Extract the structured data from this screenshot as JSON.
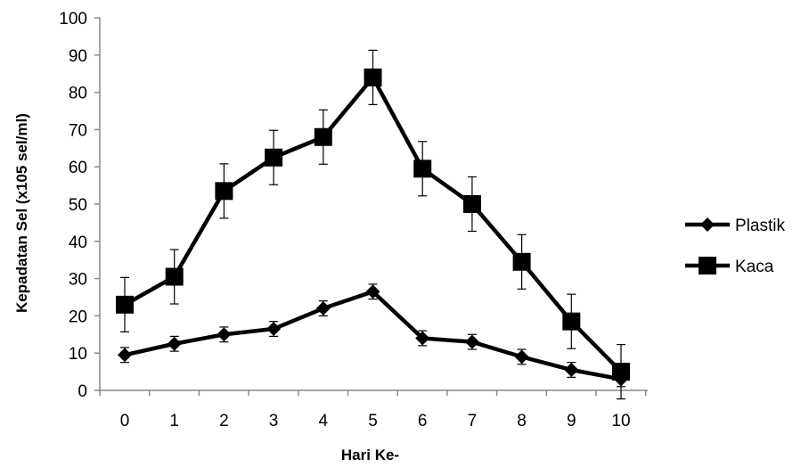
{
  "chart_data": {
    "type": "line",
    "xlabel": "Hari Ke-",
    "ylabel": "Kepadatan Sel (x105 sel/ml)",
    "x": [
      0,
      1,
      2,
      3,
      4,
      5,
      6,
      7,
      8,
      9,
      10
    ],
    "x_tick_labels": [
      "0",
      "1",
      "2",
      "3",
      "4",
      "5",
      "6",
      "7",
      "8",
      "9",
      "10"
    ],
    "ylim": [
      0,
      100
    ],
    "y_tick_labels": [
      "0",
      "10",
      "20",
      "30",
      "40",
      "50",
      "60",
      "70",
      "80",
      "90",
      "100"
    ],
    "grid": false,
    "legend_position": "right",
    "series": [
      {
        "name": "Plastik",
        "marker": "diamond",
        "color": "#000000",
        "values": [
          9.5,
          12.5,
          15,
          16.5,
          22,
          26.5,
          14,
          13,
          9,
          5.5,
          3
        ],
        "error": [
          2,
          2,
          2,
          2,
          2,
          2,
          2,
          2,
          2,
          2,
          2
        ]
      },
      {
        "name": "Kaca",
        "marker": "square",
        "color": "#000000",
        "values": [
          23,
          30.5,
          53.5,
          62.5,
          68,
          84,
          59.5,
          50,
          34.5,
          18.5,
          5
        ],
        "error": [
          7.3,
          7.3,
          7.3,
          7.3,
          7.3,
          7.3,
          7.3,
          7.3,
          7.3,
          7.3,
          7.3
        ]
      }
    ]
  }
}
